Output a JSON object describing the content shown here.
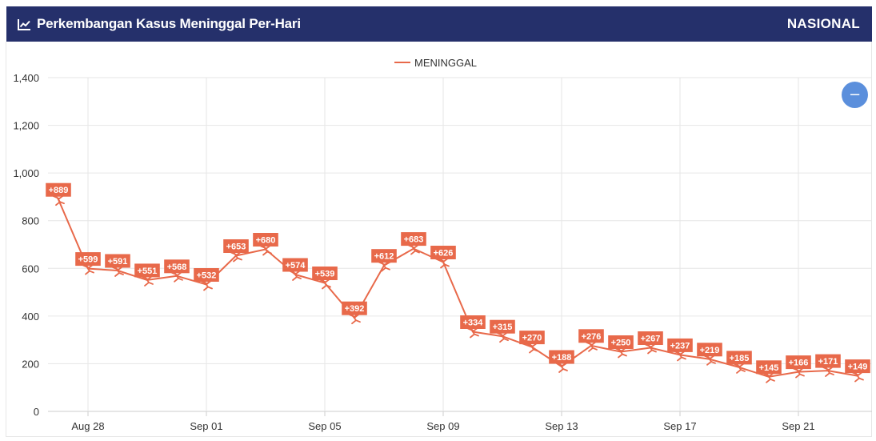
{
  "header": {
    "title": "Perkembangan Kasus Meninggal Per-Hari",
    "scope": "NASIONAL",
    "icon": "line-chart-icon",
    "background_color": "#25306b"
  },
  "zoom_button": {
    "icon": "minus-icon",
    "label": "−",
    "color": "#5b8fdc"
  },
  "chart_data": {
    "type": "line",
    "title": "",
    "xlabel": "",
    "ylabel": "",
    "legend": {
      "position": "top-center",
      "entries": [
        "MENINGGAL"
      ]
    },
    "grid": true,
    "ylim": [
      0,
      1400
    ],
    "y_ticks": [
      0,
      200,
      400,
      600,
      800,
      1000,
      1200,
      1400
    ],
    "y_tick_labels": [
      "0",
      "200",
      "400",
      "600",
      "800",
      "1,000",
      "1,200",
      "1,400"
    ],
    "x_tick_labels": [
      "Aug 28",
      "Sep 01",
      "Sep 05",
      "Sep 09",
      "Sep 13",
      "Sep 17",
      "Sep 21"
    ],
    "x_tick_indices": [
      1,
      5,
      9,
      13,
      17,
      21,
      25
    ],
    "series": [
      {
        "name": "MENINGGAL",
        "color": "#e8694a",
        "marker": "person-falling-icon",
        "values": [
          889,
          599,
          591,
          551,
          568,
          532,
          653,
          680,
          574,
          539,
          392,
          612,
          683,
          626,
          334,
          315,
          270,
          188,
          276,
          250,
          267,
          237,
          219,
          185,
          145,
          166,
          171,
          149
        ],
        "labels": [
          "+889",
          "+599",
          "+591",
          "+551",
          "+568",
          "+532",
          "+653",
          "+680",
          "+574",
          "+539",
          "+392",
          "+612",
          "+683",
          "+626",
          "+334",
          "+315",
          "+270",
          "+188",
          "+276",
          "+250",
          "+267",
          "+237",
          "+219",
          "+185",
          "+145",
          "+166",
          "+171",
          "+149"
        ]
      }
    ]
  }
}
